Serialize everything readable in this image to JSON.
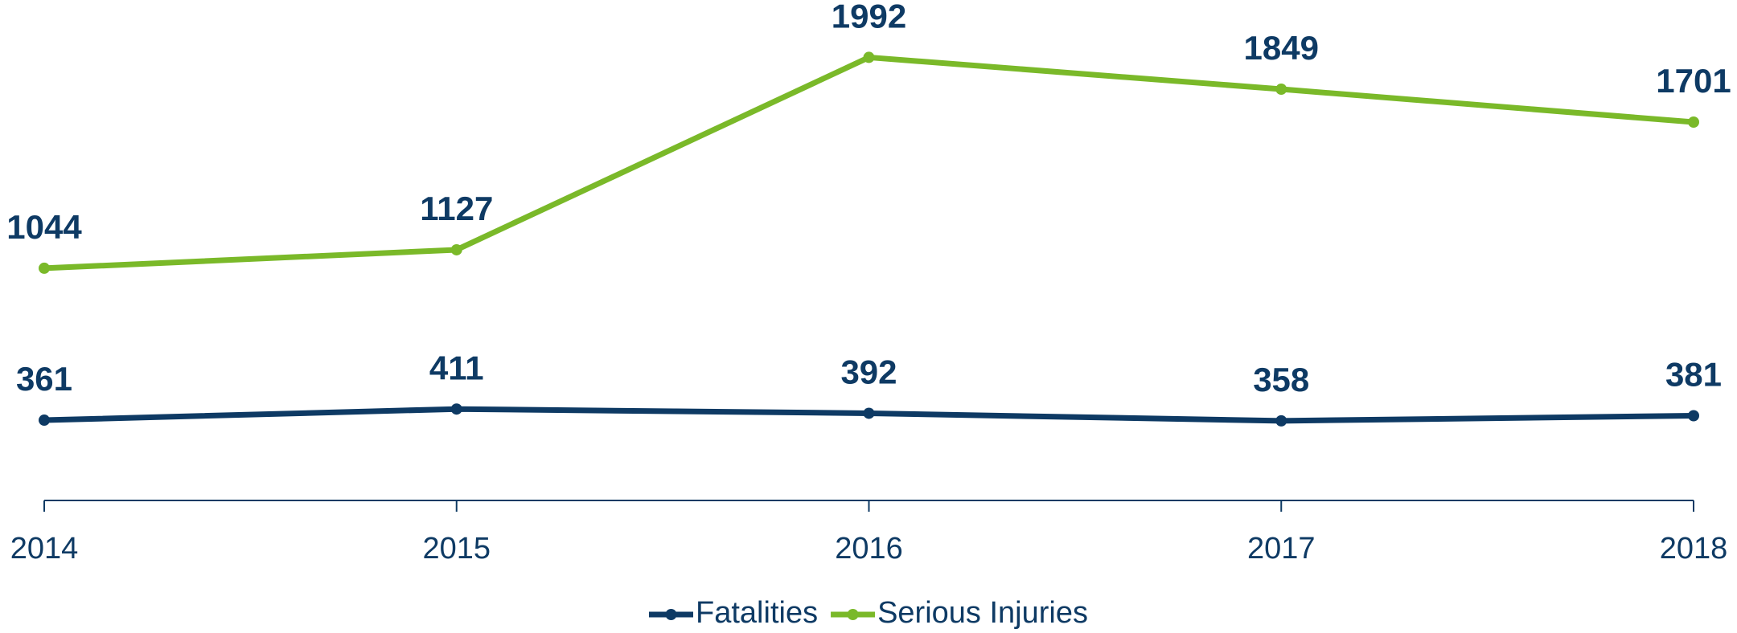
{
  "chart_data": {
    "type": "line",
    "categories": [
      "2014",
      "2015",
      "2016",
      "2017",
      "2018"
    ],
    "series": [
      {
        "name": "Fatalities",
        "color": "#0e3a64",
        "values": [
          361,
          411,
          392,
          358,
          381
        ]
      },
      {
        "name": "Serious Injuries",
        "color": "#7ab929",
        "values": [
          1044,
          1127,
          1992,
          1849,
          1701
        ]
      }
    ],
    "ylim": [
      0,
      2250
    ],
    "legend": "bottom"
  }
}
